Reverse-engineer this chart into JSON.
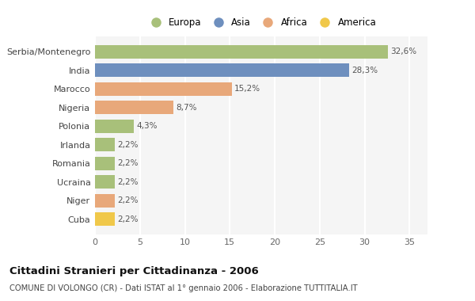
{
  "categories": [
    "Serbia/Montenegro",
    "India",
    "Marocco",
    "Nigeria",
    "Polonia",
    "Irlanda",
    "Romania",
    "Ucraina",
    "Niger",
    "Cuba"
  ],
  "values": [
    32.6,
    28.3,
    15.2,
    8.7,
    4.3,
    2.2,
    2.2,
    2.2,
    2.2,
    2.2
  ],
  "labels": [
    "32,6%",
    "28,3%",
    "15,2%",
    "8,7%",
    "4,3%",
    "2,2%",
    "2,2%",
    "2,2%",
    "2,2%",
    "2,2%"
  ],
  "colors": [
    "#a8c07a",
    "#6e8fbe",
    "#e8a87a",
    "#e8a87a",
    "#a8c07a",
    "#a8c07a",
    "#a8c07a",
    "#a8c07a",
    "#e8a87a",
    "#f0c84a"
  ],
  "legend": [
    {
      "label": "Europa",
      "color": "#a8c07a"
    },
    {
      "label": "Asia",
      "color": "#6e8fbe"
    },
    {
      "label": "Africa",
      "color": "#e8a87a"
    },
    {
      "label": "America",
      "color": "#f0c84a"
    }
  ],
  "title": "Cittadini Stranieri per Cittadinanza - 2006",
  "subtitle": "COMUNE DI VOLONGO (CR) - Dati ISTAT al 1° gennaio 2006 - Elaborazione TUTTITALIA.IT",
  "xlim": [
    0,
    37
  ],
  "xticks": [
    0,
    5,
    10,
    15,
    20,
    25,
    30,
    35
  ],
  "background_color": "#ffffff",
  "plot_bg_color": "#f5f5f5",
  "grid_color": "#ffffff",
  "bar_height": 0.72
}
